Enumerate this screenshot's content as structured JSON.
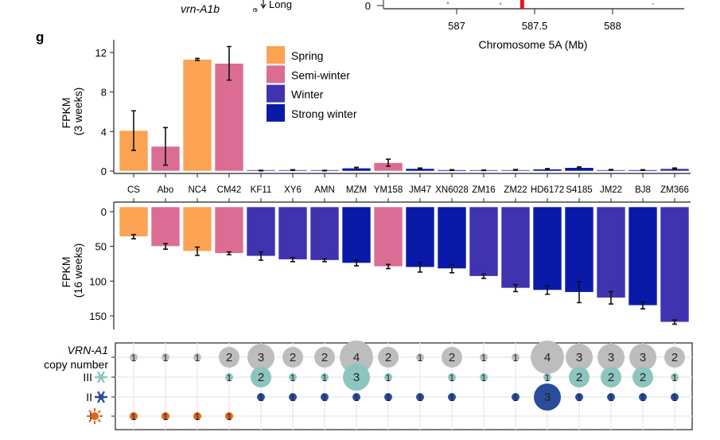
{
  "panel_label": "g",
  "top_partial": {
    "gene_label": "vrn-A1b",
    "arrow_label": "Long",
    "y_tick": "0",
    "x_ticks": [
      "587",
      "587.5",
      "588"
    ],
    "x_axis_label": "Chromosome 5A (Mb)",
    "highlight_position_mb": 587.42
  },
  "colors": {
    "Spring": "#FBA352",
    "Semi-winter": "#DB6C93",
    "Winter": "#3F33B0",
    "Strong winter": "#0A1AA8",
    "total": "#BDBDBD",
    "III": "#8CC5BF",
    "II": "#2B4C9B",
    "I": "#E0651C"
  },
  "chart_data": [
    {
      "type": "bar",
      "ylabel": "FPKM (3 weeks)",
      "ylabel_lines": [
        "FPKM",
        "(3 weeks)"
      ],
      "ylim": [
        0,
        12.5
      ],
      "yticks": [
        0,
        4,
        8,
        12
      ],
      "categories": [
        "CS",
        "Abo",
        "NC4",
        "CM42",
        "KF11",
        "XY6",
        "AMN",
        "MZM",
        "YM158",
        "JM47",
        "XN6028",
        "ZM16",
        "ZM22",
        "HD6172",
        "S4185",
        "JM22",
        "BJ8",
        "ZM366"
      ],
      "groups": [
        "Spring",
        "Semi-winter",
        "Spring",
        "Semi-winter",
        "Winter",
        "Winter",
        "Winter",
        "Strong winter",
        "Semi-winter",
        "Strong winter",
        "Strong winter",
        "Winter",
        "Winter",
        "Strong winter",
        "Strong winter",
        "Winter",
        "Strong winter",
        "Winter"
      ],
      "values": [
        4.1,
        2.5,
        11.3,
        10.9,
        0.05,
        0.1,
        0.05,
        0.3,
        0.85,
        0.25,
        0.1,
        0.08,
        0.12,
        0.2,
        0.35,
        0.12,
        0.1,
        0.25
      ],
      "errors": [
        2.0,
        1.9,
        0.1,
        1.7,
        0.03,
        0.04,
        0.03,
        0.08,
        0.35,
        0.06,
        0.04,
        0.03,
        0.04,
        0.05,
        0.07,
        0.04,
        0.04,
        0.06
      ],
      "legend": [
        "Spring",
        "Semi-winter",
        "Winter",
        "Strong winter"
      ],
      "legend_position": "top-center"
    },
    {
      "type": "bar",
      "ylabel": "FPKM (16 weeks)",
      "ylabel_lines": [
        "FPKM",
        "(16 weeks)"
      ],
      "ylim": [
        0,
        170
      ],
      "yticks": [
        0,
        50,
        100,
        150
      ],
      "reversed": true,
      "values": [
        36,
        50,
        57,
        60,
        64,
        69,
        70,
        74,
        79,
        80,
        82,
        93,
        110,
        113,
        116,
        124,
        135,
        159
      ],
      "errors": [
        3,
        4,
        6,
        2,
        6,
        3,
        2,
        4,
        3,
        7,
        6,
        3,
        5,
        6,
        15,
        9,
        5,
        3
      ]
    },
    {
      "type": "bubble",
      "row_labels": [
        "VRN-A1",
        "copy number",
        "III",
        "II",
        "I"
      ],
      "rows": {
        "total": [
          1,
          1,
          1,
          2,
          3,
          2,
          2,
          4,
          2,
          1,
          2,
          1,
          1,
          4,
          3,
          3,
          3,
          2
        ],
        "III": [
          0,
          0,
          0,
          1,
          2,
          1,
          1,
          3,
          1,
          0,
          1,
          1,
          0,
          1,
          2,
          2,
          2,
          1
        ],
        "II": [
          0,
          0,
          0,
          0,
          1,
          1,
          1,
          1,
          1,
          1,
          1,
          0,
          1,
          3,
          1,
          1,
          1,
          1
        ],
        "I": [
          1,
          1,
          1,
          1,
          0,
          0,
          0,
          0,
          0,
          0,
          0,
          0,
          0,
          0,
          0,
          0,
          0,
          0
        ]
      }
    }
  ]
}
